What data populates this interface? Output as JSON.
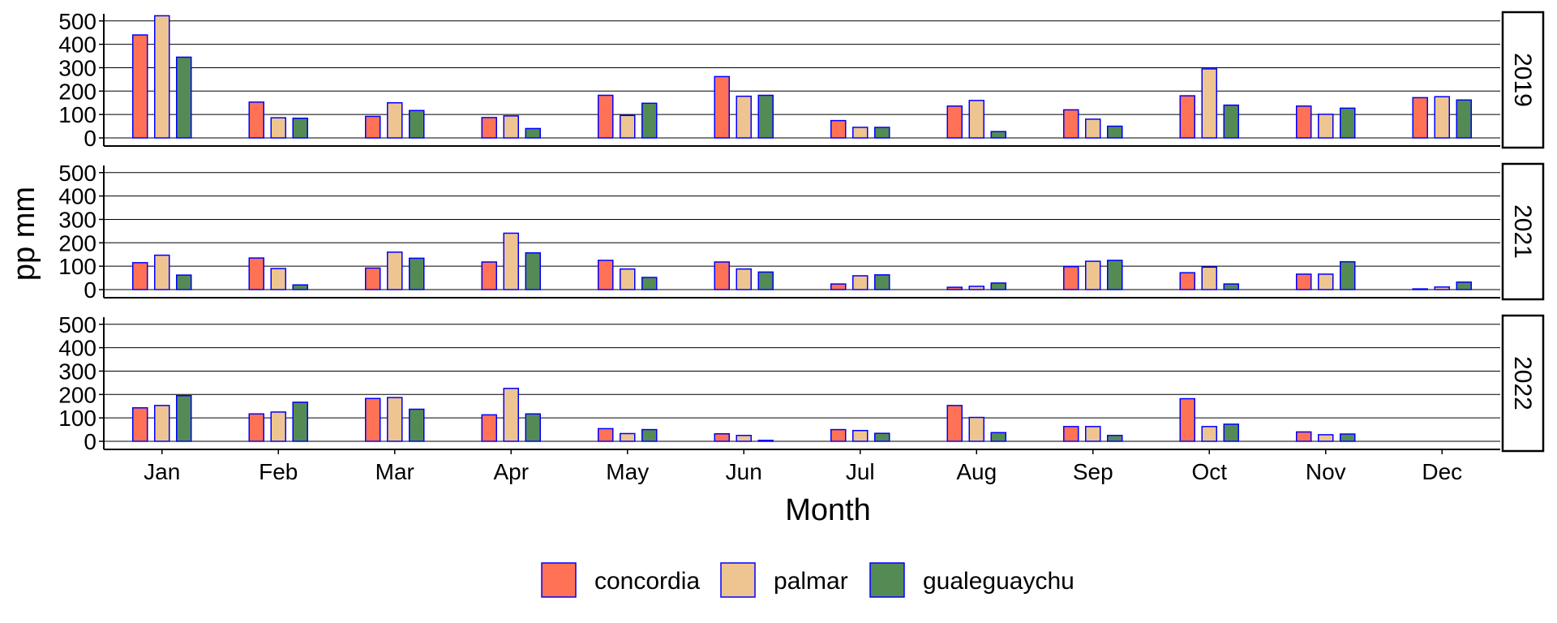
{
  "chart_data": {
    "type": "bar",
    "xlabel": "Month",
    "ylabel": "pp mm",
    "ylim": [
      0,
      520
    ],
    "yticks": [
      0,
      100,
      200,
      300,
      400,
      500
    ],
    "categories": [
      "Jan",
      "Feb",
      "Mar",
      "Apr",
      "May",
      "Jun",
      "Jul",
      "Aug",
      "Sep",
      "Oct",
      "Nov",
      "Dec"
    ],
    "series_names": [
      "concordia",
      "palmar",
      "gualeguaychu"
    ],
    "colors": {
      "concordia": "#FF7256",
      "palmar": "#EEC591",
      "gualeguaychu": "#548B54",
      "bar_border": "#0000FF"
    },
    "grid": true,
    "legend_position": "bottom",
    "panels": [
      {
        "label": "2019",
        "series": [
          {
            "name": "concordia",
            "values": [
              440,
              153,
              92,
              87,
              182,
              262,
              74,
              136,
              120,
              180,
              136,
              172
            ]
          },
          {
            "name": "palmar",
            "values": [
              522,
              86,
              150,
              94,
              96,
              178,
              45,
              160,
              80,
              295,
              101,
              176
            ]
          },
          {
            "name": "gualeguaychu",
            "values": [
              345,
              84,
              117,
              40,
              148,
              182,
              45,
              27,
              50,
              140,
              127,
              162
            ]
          }
        ]
      },
      {
        "label": "2021",
        "series": [
          {
            "name": "concordia",
            "values": [
              115,
              135,
              92,
              118,
              125,
              118,
              24,
              10,
              98,
              72,
              66,
              3
            ]
          },
          {
            "name": "palmar",
            "values": [
              147,
              90,
              160,
              241,
              88,
              88,
              59,
              14,
              121,
              96,
              66,
              11
            ]
          },
          {
            "name": "gualeguaychu",
            "values": [
              62,
              20,
              134,
              157,
              52,
              75,
              63,
              28,
              125,
              24,
              119,
              32
            ]
          }
        ]
      },
      {
        "label": "2022",
        "series": [
          {
            "name": "concordia",
            "values": [
              143,
              117,
              183,
              113,
              54,
              32,
              50,
              153,
              63,
              182,
              40,
              0
            ]
          },
          {
            "name": "palmar",
            "values": [
              153,
              125,
              187,
              226,
              33,
              25,
              46,
              102,
              63,
              63,
              28,
              0
            ]
          },
          {
            "name": "gualeguaychu",
            "values": [
              195,
              167,
              137,
              117,
              50,
              4,
              34,
              37,
              25,
              73,
              31,
              0
            ]
          }
        ]
      }
    ]
  }
}
